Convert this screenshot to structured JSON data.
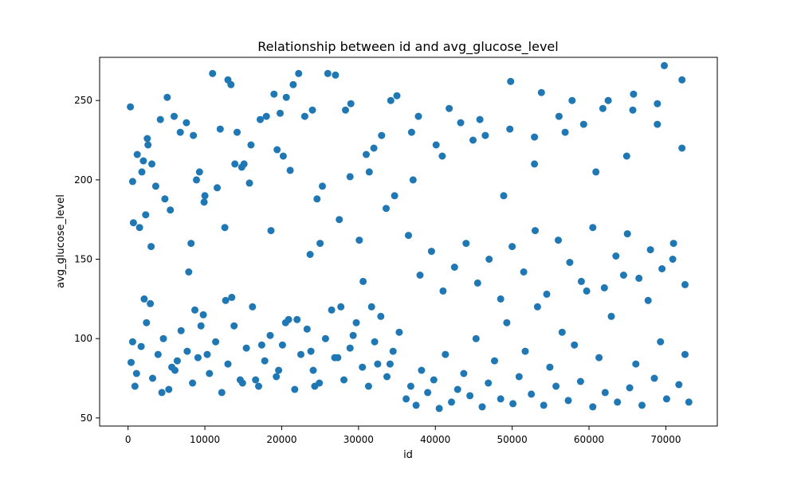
{
  "chart_data": {
    "type": "scatter",
    "title": "Relationship between id and avg_glucose_level",
    "xlabel": "id",
    "ylabel": "avg_glucose_level",
    "xlim": [
      -3700,
      76700
    ],
    "ylim": [
      44.9,
      277.2
    ],
    "xticks": [
      0,
      10000,
      20000,
      30000,
      40000,
      50000,
      60000,
      70000
    ],
    "yticks": [
      50,
      100,
      150,
      200,
      250
    ],
    "grid": false,
    "legend": "none",
    "marker_color": "#1f77b4",
    "series": [
      {
        "x": [
          300,
          700,
          1200,
          2000,
          1500,
          2500,
          3000,
          4200,
          5100,
          6000,
          6800,
          7600,
          8500,
          9300,
          10000,
          11000,
          12000,
          13000,
          13400,
          14200,
          15100,
          16000,
          17200,
          18000,
          19000,
          19800,
          20600,
          21500,
          22200,
          23000,
          24000,
          25000,
          26000,
          27000,
          28300,
          29000,
          30100,
          31000,
          32000,
          33000,
          34200,
          35000,
          1800,
          2600,
          3600,
          5500,
          8200,
          9900,
          12600,
          15800,
          18600,
          21100,
          24600,
          27500,
          30600,
          33600,
          600,
          3100,
          7900,
          11600,
          14800,
          20200,
          25300,
          31400,
          2300,
          4800,
          8900,
          13900,
          19400,
          23700,
          28900,
          34700
        ],
        "y": [
          246,
          173,
          216,
          212,
          170,
          226,
          158,
          238,
          252,
          240,
          230,
          236,
          228,
          205,
          190,
          267,
          232,
          263,
          260,
          230,
          210,
          222,
          238,
          240,
          254,
          242,
          252,
          260,
          267,
          240,
          244,
          160,
          267,
          266,
          244,
          248,
          162,
          216,
          220,
          228,
          250,
          253,
          205,
          222,
          196,
          181,
          160,
          186,
          170,
          198,
          168,
          206,
          188,
          175,
          136,
          182,
          199,
          210,
          142,
          195,
          208,
          215,
          196,
          205,
          178,
          188,
          200,
          210,
          219,
          153,
          202,
          190
        ]
      },
      {
        "x": [
          400,
          900,
          1700,
          2400,
          3200,
          3900,
          4600,
          5300,
          6100,
          6900,
          7700,
          8400,
          9100,
          9800,
          10600,
          11400,
          12200,
          13000,
          13800,
          14600,
          15400,
          16200,
          17000,
          17800,
          18500,
          19300,
          20100,
          20900,
          21700,
          22500,
          23300,
          24100,
          24900,
          25700,
          26500,
          27300,
          28100,
          28900,
          29700,
          30500,
          31300,
          32100,
          32900,
          33700,
          34500,
          35300,
          1100,
          2900,
          4400,
          6400,
          8700,
          10300,
          12700,
          14900,
          17400,
          19600,
          22000,
          24300,
          26900,
          29300,
          31700,
          34100,
          600,
          2100,
          5700,
          9500,
          13500,
          16600,
          20500,
          23800,
          27700,
          32500
        ],
        "y": [
          85,
          70,
          95,
          110,
          75,
          90,
          100,
          68,
          80,
          105,
          92,
          72,
          88,
          115,
          78,
          98,
          66,
          84,
          108,
          74,
          94,
          120,
          70,
          86,
          102,
          76,
          96,
          112,
          68,
          90,
          106,
          80,
          72,
          100,
          118,
          88,
          74,
          94,
          110,
          82,
          70,
          98,
          114,
          76,
          92,
          104,
          78,
          122,
          66,
          86,
          118,
          90,
          124,
          72,
          96,
          80,
          112,
          70,
          88,
          102,
          120,
          84,
          98,
          125,
          82,
          108,
          126,
          74,
          110,
          92,
          120,
          84
        ]
      },
      {
        "x": [
          36200,
          36800,
          37500,
          38200,
          39000,
          39800,
          40500,
          41300,
          42100,
          42900,
          43700,
          44500,
          45300,
          46100,
          46900,
          47700,
          48500,
          49300,
          50100,
          50900,
          51700,
          52500,
          53300,
          54100,
          54900,
          55700,
          56500,
          57300,
          58100,
          58900,
          59700,
          60500,
          61300,
          62100,
          62900,
          63700,
          64500,
          65300,
          66100,
          66900,
          67700,
          68500,
          69300,
          70100,
          70900,
          71700,
          72500,
          73000,
          37100,
          40900,
          44900,
          48900,
          52900,
          56900,
          60900,
          64900,
          68900,
          72100
        ],
        "y": [
          62,
          70,
          58,
          80,
          66,
          74,
          56,
          90,
          60,
          68,
          78,
          64,
          100,
          57,
          72,
          86,
          62,
          110,
          59,
          76,
          92,
          65,
          120,
          58,
          82,
          70,
          104,
          61,
          96,
          73,
          130,
          57,
          88,
          66,
          114,
          60,
          140,
          69,
          84,
          58,
          124,
          75,
          98,
          62,
          150,
          71,
          90,
          60,
          200,
          215,
          225,
          190,
          210,
          230,
          205,
          215,
          235,
          220
        ]
      },
      {
        "x": [
          36500,
          38000,
          39500,
          41000,
          42500,
          44000,
          45500,
          47000,
          48500,
          50000,
          51500,
          53000,
          54500,
          56000,
          57500,
          59000,
          60500,
          62000,
          63500,
          65000,
          66500,
          68000,
          69500,
          71000,
          72500,
          37800,
          41800,
          45800,
          49800,
          53800,
          57800,
          61800,
          65800,
          69800,
          36900,
          40100,
          43300,
          46500,
          49700,
          52900,
          56100,
          59300,
          62500,
          65700,
          68900,
          72100
        ],
        "y": [
          165,
          140,
          155,
          130,
          145,
          160,
          135,
          150,
          125,
          158,
          142,
          168,
          128,
          162,
          148,
          136,
          170,
          132,
          152,
          166,
          138,
          156,
          144,
          160,
          134,
          240,
          245,
          238,
          262,
          255,
          250,
          245,
          254,
          272,
          230,
          222,
          236,
          228,
          232,
          227,
          240,
          235,
          250,
          244,
          248,
          263
        ]
      }
    ]
  }
}
